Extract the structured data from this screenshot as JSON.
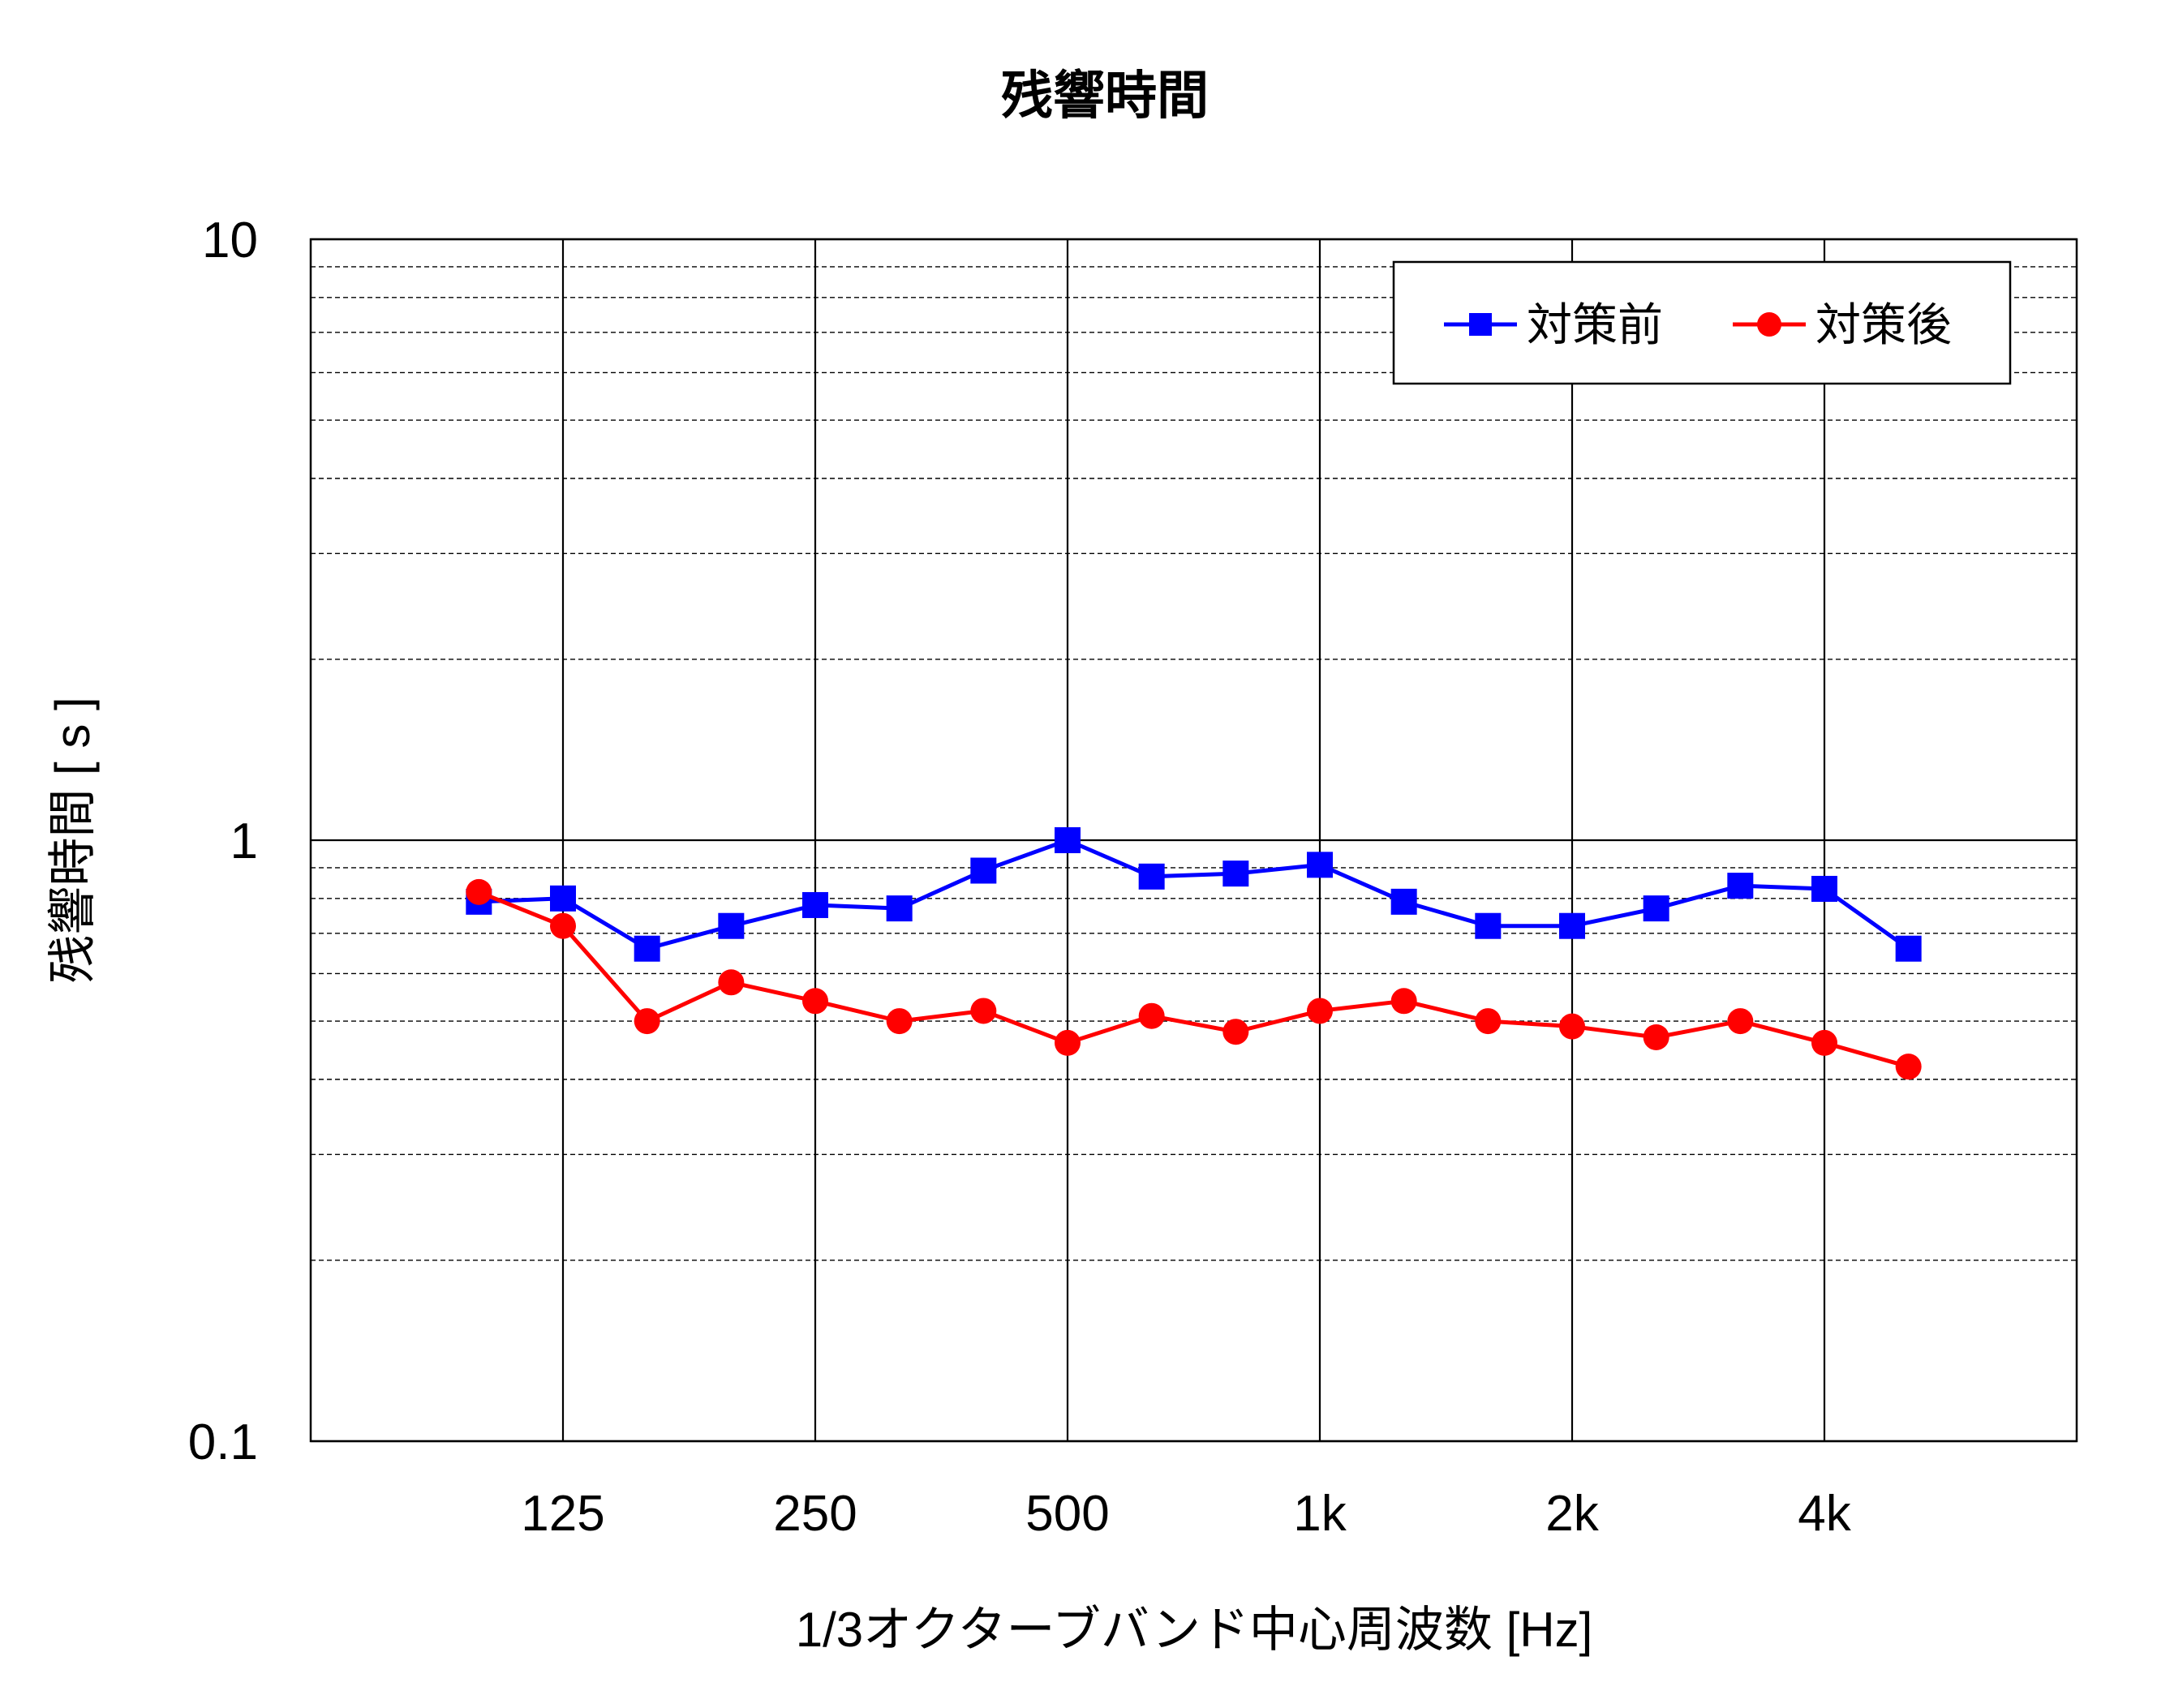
{
  "chart_data": {
    "type": "line",
    "title": "残響時間",
    "xlabel": "1/3オクターブバンド中心周波数 [Hz]",
    "ylabel": "残響時間 [ s ]",
    "yscale": "log",
    "ylim": [
      0.1,
      10
    ],
    "y_tick_labels": [
      "10",
      "1",
      "0.1"
    ],
    "x_tick_labels": [
      "125",
      "250",
      "500",
      "1k",
      "2k",
      "4k"
    ],
    "x": [
      100,
      125,
      160,
      200,
      250,
      315,
      400,
      500,
      630,
      800,
      1000,
      1250,
      1600,
      2000,
      2500,
      3150,
      4000,
      5000
    ],
    "grid": true,
    "legend_position": "top-right",
    "series": [
      {
        "name": "対策前",
        "color": "#0000ff",
        "marker": "square",
        "values": [
          0.79,
          0.8,
          0.66,
          0.72,
          0.78,
          0.77,
          0.89,
          1.0,
          0.87,
          0.88,
          0.91,
          0.79,
          0.72,
          0.72,
          0.77,
          0.84,
          0.83,
          0.66
        ]
      },
      {
        "name": "対策後",
        "color": "#ff0000",
        "marker": "circle",
        "values": [
          0.82,
          0.72,
          0.5,
          0.58,
          0.54,
          0.5,
          0.52,
          0.46,
          0.51,
          0.48,
          0.52,
          0.54,
          0.5,
          0.49,
          0.47,
          0.5,
          0.46,
          0.42
        ]
      }
    ]
  }
}
